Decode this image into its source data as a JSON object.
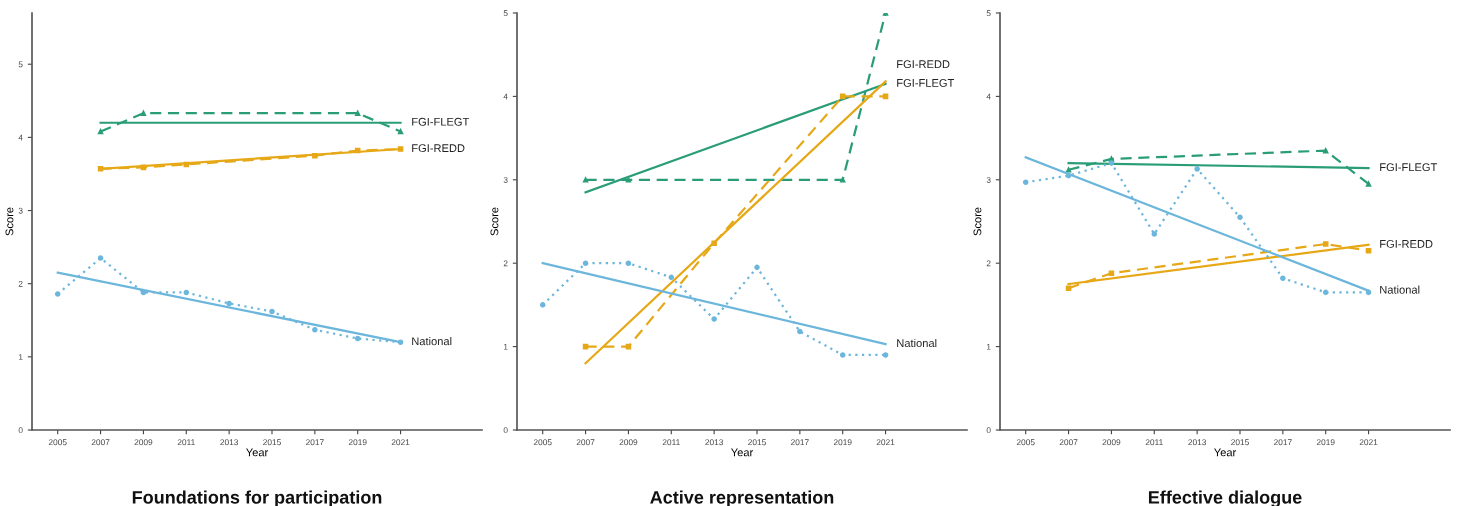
{
  "chart_data": [
    {
      "type": "line",
      "title": "Foundations for participation",
      "xlabel": "Year",
      "ylabel": "Score",
      "xlim": [
        2003.8,
        2024.8
      ],
      "ylim": [
        0,
        5.7
      ],
      "xticks": [
        2005,
        2007,
        2009,
        2011,
        2013,
        2015,
        2017,
        2019,
        2021
      ],
      "yticks": [
        0,
        1,
        2,
        3,
        4,
        5
      ],
      "grid": false,
      "legend": false,
      "series": [
        {
          "color": "#2a9d78",
          "x": [
            2007,
            2009,
            2019,
            2021
          ],
          "values": [
            4.08,
            4.33,
            4.33,
            4.08
          ],
          "line_style": "dashed",
          "marker": "triangle"
        },
        {
          "name": "FGI-FLEGT",
          "color": "#2a9d78",
          "x": [
            2007,
            2021
          ],
          "values": [
            4.2,
            4.2
          ],
          "line_style": "solid",
          "marker": "none"
        },
        {
          "color": "#e6a817",
          "x": [
            2007,
            2009,
            2011,
            2017,
            2019,
            2021
          ],
          "values": [
            3.57,
            3.59,
            3.63,
            3.75,
            3.82,
            3.84
          ],
          "line_style": "dashed",
          "marker": "square"
        },
        {
          "name": "FGI-REDD",
          "color": "#e6a817",
          "x": [
            2007,
            2021
          ],
          "values": [
            3.57,
            3.84
          ],
          "line_style": "solid",
          "marker": "none"
        },
        {
          "color": "#6cb6dc",
          "x": [
            2005,
            2007,
            2009,
            2011,
            2013,
            2015,
            2017,
            2019,
            2021
          ],
          "values": [
            1.86,
            2.35,
            1.88,
            1.88,
            1.73,
            1.62,
            1.37,
            1.25,
            1.2
          ],
          "line_style": "dotted",
          "marker": "circle"
        },
        {
          "name": "National",
          "color": "#6cb6dc",
          "x": [
            2005,
            2021
          ],
          "values": [
            2.15,
            1.2
          ],
          "line_style": "solid",
          "marker": "none"
        }
      ]
    },
    {
      "type": "line",
      "title": "Active representation",
      "xlabel": "Year",
      "ylabel": "Score",
      "xlim": [
        2003.8,
        2024.8
      ],
      "ylim": [
        0,
        5
      ],
      "xticks": [
        2005,
        2007,
        2009,
        2011,
        2013,
        2015,
        2017,
        2019,
        2021
      ],
      "yticks": [
        0,
        1,
        2,
        3,
        4,
        5
      ],
      "grid": false,
      "legend": false,
      "series": [
        {
          "color": "#2a9d78",
          "x": [
            2007,
            2009,
            2019,
            2021
          ],
          "values": [
            3,
            3,
            3,
            5
          ],
          "line_style": "dashed",
          "marker": "triangle"
        },
        {
          "name": "FGI-FLEGT",
          "color": "#2a9d78",
          "x": [
            2007,
            2021
          ],
          "values": [
            2.85,
            4.15
          ],
          "line_style": "solid",
          "marker": "none"
        },
        {
          "color": "#e6a817",
          "x": [
            2007,
            2009,
            2013,
            2019,
            2021
          ],
          "values": [
            1,
            1,
            2.24,
            4,
            4
          ],
          "line_style": "dashed",
          "marker": "square"
        },
        {
          "name": "FGI-REDD",
          "color": "#e6a817",
          "x": [
            2007,
            2021
          ],
          "values": [
            0.8,
            4.18
          ],
          "line_style": "solid",
          "marker": "none"
        },
        {
          "color": "#6cb6dc",
          "x": [
            2005,
            2007,
            2009,
            2011,
            2013,
            2015,
            2017,
            2019,
            2021
          ],
          "values": [
            1.5,
            2.0,
            2.0,
            1.83,
            1.33,
            1.95,
            1.18,
            0.9,
            0.9
          ],
          "line_style": "dotted",
          "marker": "circle"
        },
        {
          "name": "National",
          "color": "#6cb6dc",
          "x": [
            2005,
            2021
          ],
          "values": [
            2.0,
            1.03
          ],
          "line_style": "solid",
          "marker": "none"
        }
      ]
    },
    {
      "type": "line",
      "title": "Effective dialogue",
      "xlabel": "Year",
      "ylabel": "Score",
      "xlim": [
        2003.8,
        2024.8
      ],
      "ylim": [
        0,
        5
      ],
      "xticks": [
        2005,
        2007,
        2009,
        2011,
        2013,
        2015,
        2017,
        2019,
        2021
      ],
      "yticks": [
        0,
        1,
        2,
        3,
        4,
        5
      ],
      "grid": false,
      "legend": false,
      "series": [
        {
          "color": "#2a9d78",
          "x": [
            2007,
            2009,
            2019,
            2021
          ],
          "values": [
            3.12,
            3.25,
            3.35,
            2.95
          ],
          "line_style": "dashed",
          "marker": "triangle"
        },
        {
          "name": "FGI-FLEGT",
          "color": "#2a9d78",
          "x": [
            2007,
            2021
          ],
          "values": [
            3.2,
            3.14
          ],
          "line_style": "solid",
          "marker": "none"
        },
        {
          "color": "#e6a817",
          "x": [
            2007,
            2009,
            2019,
            2021
          ],
          "values": [
            1.7,
            1.88,
            2.23,
            2.15
          ],
          "line_style": "dashed",
          "marker": "square"
        },
        {
          "name": "FGI-REDD",
          "color": "#e6a817",
          "x": [
            2007,
            2021
          ],
          "values": [
            1.75,
            2.22
          ],
          "line_style": "solid",
          "marker": "none"
        },
        {
          "color": "#6cb6dc",
          "x": [
            2005,
            2007,
            2009,
            2011,
            2013,
            2015,
            2017,
            2019,
            2021
          ],
          "values": [
            2.97,
            3.05,
            3.2,
            2.35,
            3.13,
            2.55,
            1.82,
            1.65,
            1.65
          ],
          "line_style": "dotted",
          "marker": "circle"
        },
        {
          "name": "National",
          "color": "#6cb6dc",
          "x": [
            2005,
            2021
          ],
          "values": [
            3.27,
            1.67
          ],
          "line_style": "solid",
          "marker": "none"
        }
      ]
    }
  ]
}
